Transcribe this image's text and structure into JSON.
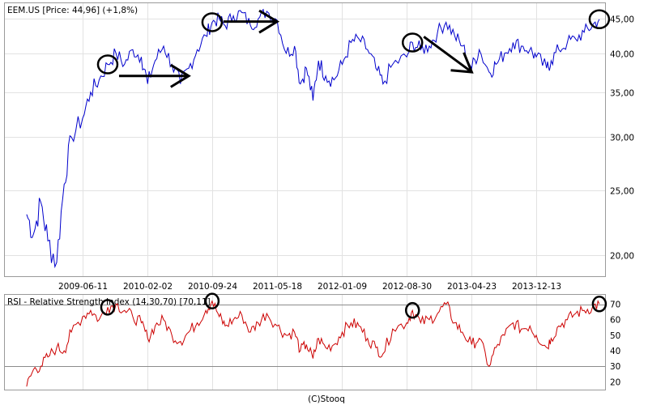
{
  "chart_data": [
    {
      "type": "line",
      "title": "EEM.US [Price: 44,96] (+1,8%)",
      "yscale": "log",
      "ylim": [
        18.6,
        47.5
      ],
      "grid": true,
      "color": "#0000cc",
      "xtick_labels": [
        "2009-06-11",
        "2010-02-02",
        "2010-09-24",
        "2011-05-18",
        "2012-01-09",
        "2012-08-30",
        "2013-04-23",
        "2013-12-13"
      ],
      "ytick_labels": [
        "20,00",
        "25,00",
        "30,00",
        "35,00",
        "40,00",
        "45,00"
      ],
      "yticks": [
        20,
        25,
        30,
        35,
        40,
        45
      ],
      "series": [
        {
          "x": [
            "2008-11-20",
            "2008-12-15",
            "2009-01-10",
            "2009-02-05",
            "2009-03-09",
            "2009-04-05",
            "2009-05-01",
            "2009-06-11",
            "2009-07-10",
            "2009-08-10",
            "2009-09-10",
            "2009-10-10",
            "2009-11-10",
            "2009-12-10",
            "2010-01-10",
            "2010-02-02",
            "2010-03-01",
            "2010-04-01",
            "2010-05-01",
            "2010-06-01",
            "2010-07-01",
            "2010-08-01",
            "2010-09-01",
            "2010-09-24",
            "2010-10-20",
            "2010-11-10",
            "2010-12-10",
            "2011-01-10",
            "2011-02-10",
            "2011-03-10",
            "2011-04-10",
            "2011-05-18",
            "2011-06-20",
            "2011-07-20",
            "2011-08-10",
            "2011-09-01",
            "2011-09-25",
            "2011-10-15",
            "2011-11-10",
            "2011-12-10",
            "2012-01-09",
            "2012-02-10",
            "2012-03-10",
            "2012-04-10",
            "2012-05-10",
            "2012-06-05",
            "2012-07-10",
            "2012-08-30",
            "2012-09-20",
            "2012-10-20",
            "2012-11-20",
            "2012-12-20",
            "2013-01-20",
            "2013-02-20",
            "2013-03-20",
            "2013-04-23",
            "2013-05-20",
            "2013-06-25",
            "2013-07-20",
            "2013-08-20",
            "2013-09-20",
            "2013-10-20",
            "2013-11-20",
            "2013-12-13",
            "2014-01-20",
            "2014-02-05",
            "2014-03-05",
            "2014-04-05",
            "2014-05-05",
            "2014-06-05",
            "2014-07-05",
            "2014-07-30"
          ],
          "values": [
            23.0,
            21.5,
            24.0,
            21.0,
            19.5,
            25.5,
            30.0,
            32.0,
            35.0,
            36.5,
            38.5,
            40.0,
            38.5,
            40.5,
            39.5,
            36.0,
            39.0,
            41.0,
            38.5,
            36.0,
            38.0,
            40.5,
            42.5,
            44.5,
            45.0,
            44.0,
            45.5,
            46.0,
            44.0,
            45.0,
            46.2,
            44.8,
            40.0,
            41.0,
            36.0,
            38.0,
            34.0,
            39.0,
            37.0,
            36.5,
            38.5,
            41.5,
            42.0,
            40.5,
            38.0,
            36.0,
            38.5,
            39.5,
            41.5,
            40.5,
            41.0,
            43.0,
            44.5,
            42.5,
            41.0,
            38.0,
            40.5,
            37.5,
            38.5,
            40.0,
            41.5,
            41.0,
            40.5,
            39.5,
            38.0,
            39.0,
            40.5,
            41.5,
            42.0,
            43.0,
            44.0,
            44.96
          ]
        }
      ]
    },
    {
      "type": "line",
      "title": "RSI - Relative Strength Index (14,30,70) [70,11]",
      "ylim": [
        15,
        76
      ],
      "grid": true,
      "color": "#cc0000",
      "ytick_labels": [
        "20",
        "30",
        "40",
        "50",
        "60",
        "70"
      ],
      "yticks": [
        20,
        30,
        40,
        50,
        60,
        70
      ],
      "reference_lines": [
        30,
        70
      ],
      "series": [
        {
          "x": [
            "2008-11-20",
            "2008-12-15",
            "2009-01-10",
            "2009-02-05",
            "2009-03-09",
            "2009-04-05",
            "2009-05-01",
            "2009-06-11",
            "2009-07-10",
            "2009-08-10",
            "2009-09-10",
            "2009-10-10",
            "2009-11-10",
            "2009-12-10",
            "2010-01-10",
            "2010-02-02",
            "2010-03-01",
            "2010-04-01",
            "2010-05-01",
            "2010-06-01",
            "2010-07-01",
            "2010-08-01",
            "2010-09-01",
            "2010-09-24",
            "2010-10-20",
            "2010-11-10",
            "2010-12-10",
            "2011-01-10",
            "2011-02-10",
            "2011-03-10",
            "2011-04-10",
            "2011-05-18",
            "2011-06-20",
            "2011-07-20",
            "2011-08-10",
            "2011-09-01",
            "2011-09-25",
            "2011-10-15",
            "2011-11-10",
            "2011-12-10",
            "2012-01-09",
            "2012-02-10",
            "2012-03-10",
            "2012-04-10",
            "2012-05-10",
            "2012-06-05",
            "2012-07-10",
            "2012-08-30",
            "2012-09-20",
            "2012-10-20",
            "2012-11-20",
            "2012-12-20",
            "2013-01-20",
            "2013-02-20",
            "2013-03-20",
            "2013-04-23",
            "2013-05-20",
            "2013-06-25",
            "2013-07-20",
            "2013-08-20",
            "2013-09-20",
            "2013-10-20",
            "2013-11-20",
            "2013-12-13",
            "2014-01-20",
            "2014-02-05",
            "2014-03-05",
            "2014-04-05",
            "2014-05-05",
            "2014-06-05",
            "2014-07-05",
            "2014-07-30"
          ],
          "values": [
            17,
            28,
            30,
            36,
            42,
            40,
            52,
            62,
            66,
            60,
            68,
            70,
            66,
            62,
            58,
            48,
            56,
            60,
            50,
            46,
            52,
            58,
            66,
            72,
            62,
            56,
            60,
            63,
            52,
            58,
            64,
            56,
            50,
            52,
            40,
            44,
            35,
            48,
            42,
            44,
            52,
            58,
            56,
            48,
            42,
            38,
            54,
            58,
            66,
            58,
            60,
            64,
            70,
            58,
            52,
            44,
            48,
            30,
            42,
            50,
            58,
            54,
            56,
            50,
            42,
            48,
            56,
            60,
            64,
            66,
            68,
            70.11
          ]
        }
      ]
    }
  ],
  "annotations": {
    "circle_dates": [
      "2009-09-10",
      "2010-09-24",
      "2012-09-20",
      "2014-07-30"
    ],
    "arrows": [
      {
        "from": "2009-09-10",
        "to": "2010-07-01",
        "level": 37.0
      },
      {
        "from": "2010-09-24",
        "to": "2011-05-18",
        "level": 44.6
      },
      {
        "from": "2012-09-20",
        "to": "2013-04-23",
        "from_value": 43.3,
        "to_value": 37.5
      }
    ]
  },
  "footer": "(C)Stooq"
}
